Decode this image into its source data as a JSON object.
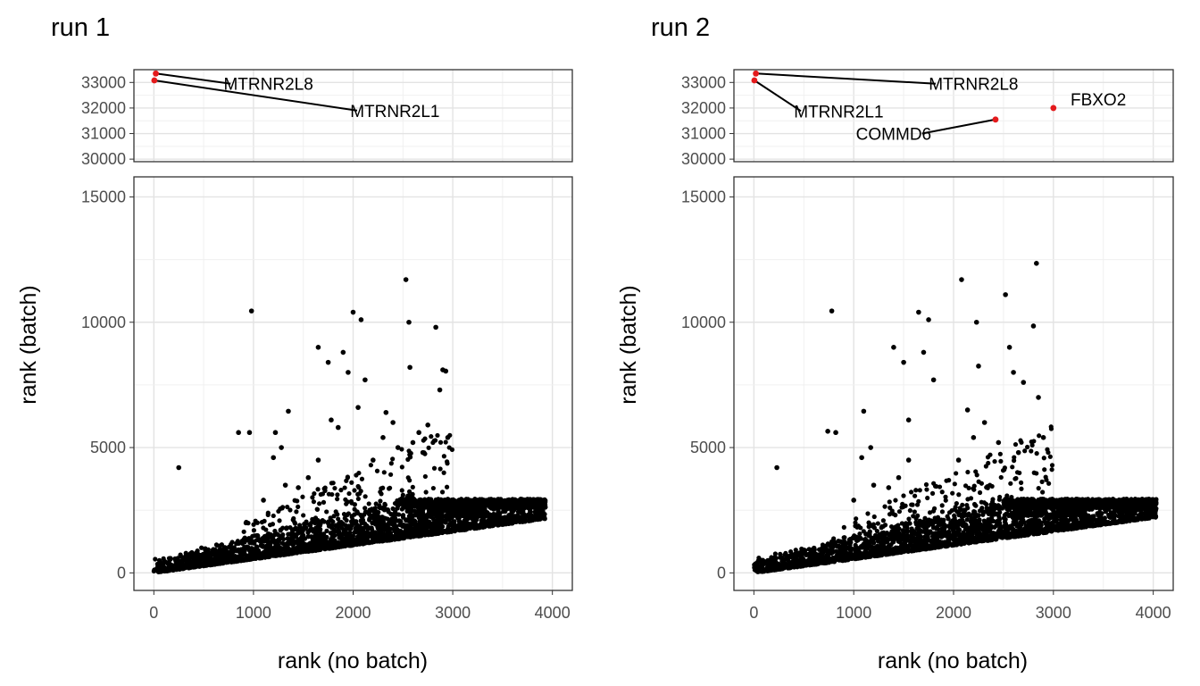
{
  "chart_data": [
    {
      "type": "scatter",
      "title": "run 1",
      "xlabel": "rank (no batch)",
      "ylabel": "rank (batch)",
      "xlim": [
        -200,
        4200
      ],
      "ylim_main": [
        -700,
        15800
      ],
      "ylim_top": [
        29900,
        33500
      ],
      "x_ticks": [
        "0",
        "1000",
        "2000",
        "3000",
        "4000"
      ],
      "y_ticks_main": [
        "0",
        "5000",
        "10000",
        "15000"
      ],
      "y_ticks_top": [
        "30000",
        "31000",
        "32000",
        "33000"
      ],
      "grid": true,
      "highlight_color": "#e41a1c",
      "highlighted_points": [
        {
          "label": "MTRNR2L8",
          "x": 20,
          "y": 33350,
          "label_x": 1150,
          "label_y": 32950
        },
        {
          "label": "MTRNR2L1",
          "x": 5,
          "y": 33080,
          "label_x": 2420,
          "label_y": 31900
        }
      ],
      "trend_summary": {
        "x_max": 3930,
        "y_band_cap": 2950,
        "slope_low": 0.55,
        "slope_high": 1.0
      },
      "outliers": [
        [
          250,
          4200
        ],
        [
          850,
          5600
        ],
        [
          960,
          5600
        ],
        [
          980,
          10450
        ],
        [
          1100,
          2900
        ],
        [
          1200,
          4600
        ],
        [
          1220,
          5600
        ],
        [
          1280,
          5000
        ],
        [
          1350,
          6450
        ],
        [
          1320,
          3500
        ],
        [
          1650,
          9000
        ],
        [
          1750,
          8400
        ],
        [
          1780,
          6100
        ],
        [
          1850,
          5800
        ],
        [
          1900,
          8800
        ],
        [
          1950,
          8000
        ],
        [
          2000,
          10400
        ],
        [
          2050,
          6600
        ],
        [
          2080,
          10100
        ],
        [
          2120,
          7700
        ],
        [
          2330,
          6400
        ],
        [
          2400,
          6000
        ],
        [
          2450,
          5000
        ],
        [
          2530,
          11700
        ],
        [
          2560,
          10000
        ],
        [
          2570,
          8200
        ],
        [
          2600,
          5200
        ],
        [
          2660,
          5600
        ],
        [
          2750,
          5900
        ],
        [
          2830,
          9800
        ],
        [
          2870,
          7300
        ],
        [
          2900,
          8100
        ],
        [
          2930,
          8050
        ],
        [
          2950,
          5400
        ],
        [
          1650,
          4500
        ],
        [
          1450,
          3400
        ],
        [
          1550,
          3800
        ],
        [
          2200,
          4500
        ],
        [
          2700,
          4800
        ],
        [
          2300,
          5400
        ]
      ]
    },
    {
      "type": "scatter",
      "title": "run 2",
      "xlabel": "rank (no batch)",
      "ylabel": "rank (batch)",
      "xlim": [
        -200,
        4200
      ],
      "ylim_main": [
        -700,
        15800
      ],
      "ylim_top": [
        29900,
        33500
      ],
      "x_ticks": [
        "0",
        "1000",
        "2000",
        "3000",
        "4000"
      ],
      "y_ticks_main": [
        "0",
        "5000",
        "10000",
        "15000"
      ],
      "y_ticks_top": [
        "30000",
        "31000",
        "32000",
        "33000"
      ],
      "grid": true,
      "highlight_color": "#e41a1c",
      "highlighted_points": [
        {
          "label": "MTRNR2L8",
          "x": 20,
          "y": 33350,
          "label_x": 2200,
          "label_y": 32950
        },
        {
          "label": "MTRNR2L1",
          "x": 5,
          "y": 33080,
          "label_x": 850,
          "label_y": 31880
        },
        {
          "label": "COMMD6",
          "x": 2420,
          "y": 31550,
          "label_x": 1400,
          "label_y": 31000
        },
        {
          "label": "FBXO2",
          "x": 3000,
          "y": 32000,
          "label_x": 3450,
          "label_y": 32350
        }
      ],
      "trend_summary": {
        "x_max": 4030,
        "y_band_cap": 2950,
        "slope_low": 0.55,
        "slope_high": 1.0
      },
      "outliers": [
        [
          230,
          4200
        ],
        [
          780,
          10450
        ],
        [
          740,
          5650
        ],
        [
          820,
          5600
        ],
        [
          1000,
          2900
        ],
        [
          1080,
          4600
        ],
        [
          1100,
          6450
        ],
        [
          1170,
          5000
        ],
        [
          1200,
          3500
        ],
        [
          1400,
          9000
        ],
        [
          1500,
          8400
        ],
        [
          1550,
          6100
        ],
        [
          1650,
          10400
        ],
        [
          1700,
          8800
        ],
        [
          1750,
          10100
        ],
        [
          1800,
          7700
        ],
        [
          2080,
          11700
        ],
        [
          2140,
          6500
        ],
        [
          2230,
          10000
        ],
        [
          2250,
          8250
        ],
        [
          2310,
          6000
        ],
        [
          2450,
          5200
        ],
        [
          2520,
          11100
        ],
        [
          2560,
          9000
        ],
        [
          2600,
          8000
        ],
        [
          2700,
          7600
        ],
        [
          2830,
          12350
        ],
        [
          2800,
          9850
        ],
        [
          2850,
          7000
        ],
        [
          2900,
          5400
        ],
        [
          1550,
          4500
        ],
        [
          1350,
          3400
        ],
        [
          1450,
          3800
        ],
        [
          2050,
          4500
        ],
        [
          2650,
          4800
        ],
        [
          2200,
          5400
        ]
      ]
    }
  ]
}
